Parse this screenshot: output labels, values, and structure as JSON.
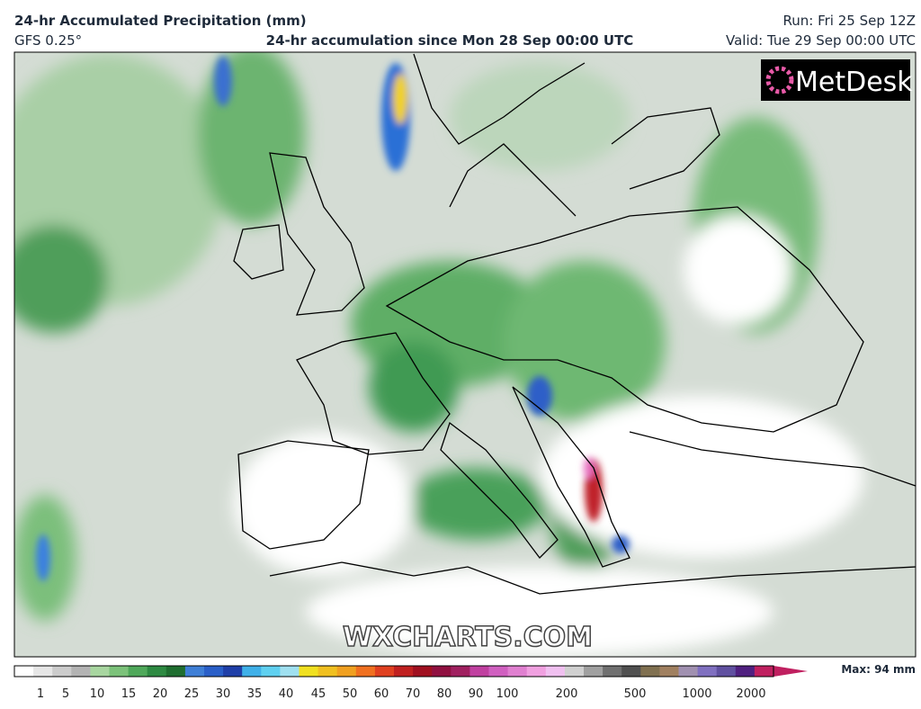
{
  "header": {
    "title": "24-hr Accumulated Precipitation (mm)",
    "model": "GFS 0.25°",
    "subtitle": "24-hr accumulation since Mon 28 Sep 00:00 UTC",
    "run": "Run: Fri 25 Sep 12Z",
    "valid": "Valid: Tue 29 Sep 00:00 UTC"
  },
  "logo": "MetDesk",
  "watermark": "WXCHARTS.COM",
  "colorbar": {
    "ticks": [
      1,
      5,
      10,
      15,
      20,
      25,
      30,
      35,
      40,
      45,
      50,
      60,
      70,
      80,
      90,
      100,
      200,
      500,
      1000,
      2000
    ],
    "max_label": "Max: 94 mm"
  }
}
